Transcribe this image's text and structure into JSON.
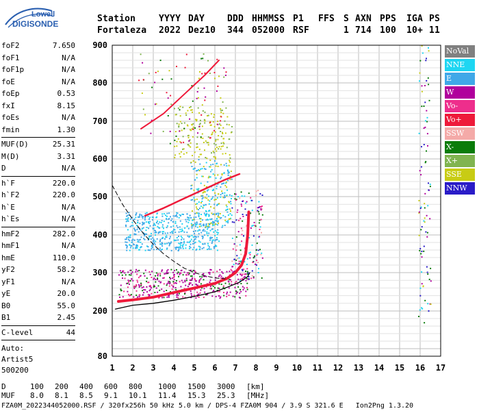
{
  "logo": {
    "brand": "Lowell",
    "product": "DIGISONDE"
  },
  "header": {
    "row1": [
      "Station",
      "YYYY",
      "DAY",
      "DDD",
      "HHMMSS",
      "P1",
      "FFS",
      "S",
      "AXN",
      "PPS",
      "IGA",
      "PS"
    ],
    "row2": [
      "Fortaleza",
      "2022",
      "Dez10",
      "344",
      "052000",
      "RSF",
      "1",
      "714",
      "100",
      "10+",
      "11"
    ]
  },
  "params": {
    "group1": [
      {
        "name": "foF2",
        "value": "7.650"
      },
      {
        "name": "foF1",
        "value": "N/A"
      },
      {
        "name": "foF1p",
        "value": "N/A"
      },
      {
        "name": "foE",
        "value": "N/A"
      },
      {
        "name": "foEp",
        "value": "0.53"
      },
      {
        "name": "fxI",
        "value": "8.15"
      },
      {
        "name": "foEs",
        "value": "N/A"
      },
      {
        "name": "fmin",
        "value": "1.30"
      }
    ],
    "group2": [
      {
        "name": "MUF(D)",
        "value": "25.31"
      },
      {
        "name": "M(D)",
        "value": "3.31"
      },
      {
        "name": "D",
        "value": "N/A"
      }
    ],
    "group3": [
      {
        "name": "h`F",
        "value": "220.0"
      },
      {
        "name": "h`F2",
        "value": "220.0"
      },
      {
        "name": "h`E",
        "value": "N/A"
      },
      {
        "name": "h`Es",
        "value": "N/A"
      }
    ],
    "group4": [
      {
        "name": "hmF2",
        "value": "282.0"
      },
      {
        "name": "hmF1",
        "value": "N/A"
      },
      {
        "name": "hmE",
        "value": "110.0"
      },
      {
        "name": "yF2",
        "value": "58.2"
      },
      {
        "name": "yF1",
        "value": "N/A"
      },
      {
        "name": "yE",
        "value": "20.0"
      },
      {
        "name": "B0",
        "value": "55.0"
      },
      {
        "name": "B1",
        "value": "2.45"
      }
    ],
    "group5": [
      {
        "name": "C-level",
        "value": "44"
      }
    ],
    "extra": [
      "Auto:",
      "Artist5",
      "500200"
    ]
  },
  "legend": [
    {
      "label": "NoVal",
      "color": "#808080"
    },
    {
      "label": "NNE",
      "color": "#1ed6f2"
    },
    {
      "label": "E",
      "color": "#40a8e8"
    },
    {
      "label": "W",
      "color": "#b0009c"
    },
    {
      "label": "Vo-",
      "color": "#ee2e8c"
    },
    {
      "label": "Vo+",
      "color": "#ee1a3a"
    },
    {
      "label": "SSW",
      "color": "#f4aaa8"
    },
    {
      "label": "X-",
      "color": "#0a7c0a"
    },
    {
      "label": "X+",
      "color": "#80b450"
    },
    {
      "label": "SSE",
      "color": "#c8cc14"
    },
    {
      "label": "NNW",
      "color": "#2a1cc8"
    }
  ],
  "chart_data": {
    "type": "scatter",
    "xlim": [
      1,
      17
    ],
    "ylim": [
      80,
      900
    ],
    "x_ticks": [
      "1",
      "2",
      "3",
      "4",
      "5",
      "6",
      "7",
      "8",
      "9",
      "10",
      "11",
      "12",
      "13",
      "14",
      "15",
      "16",
      "17"
    ],
    "y_ticks": [
      "80",
      "200",
      "300",
      "400",
      "500",
      "600",
      "700",
      "800",
      "900"
    ],
    "grid": true,
    "xlabel": "",
    "ylabel": "",
    "series": [
      {
        "name": "Vo+",
        "trace": [
          [
            1.3,
            225
          ],
          [
            2,
            229
          ],
          [
            3,
            236
          ],
          [
            4,
            248
          ],
          [
            5,
            260
          ],
          [
            6,
            272
          ],
          [
            6.6,
            285
          ],
          [
            7,
            300
          ],
          [
            7.3,
            320
          ],
          [
            7.5,
            350
          ],
          [
            7.6,
            400
          ],
          [
            7.65,
            460
          ]
        ]
      },
      {
        "name": "Vo+",
        "trace": [
          [
            2.6,
            450
          ],
          [
            3.5,
            470
          ],
          [
            4.5,
            495
          ],
          [
            5.5,
            520
          ],
          [
            6.5,
            545
          ],
          [
            7.2,
            560
          ]
        ]
      },
      {
        "name": "Vo+",
        "trace": [
          [
            2.4,
            680
          ],
          [
            3.5,
            720
          ],
          [
            4.5,
            770
          ],
          [
            5.5,
            820
          ],
          [
            6.2,
            860
          ]
        ]
      },
      {
        "name": "",
        "trace": [
          [
            1.15,
            205
          ],
          [
            2,
            215
          ],
          [
            3,
            220
          ],
          [
            4,
            228
          ],
          [
            5,
            238
          ],
          [
            6,
            250
          ],
          [
            6.6,
            262
          ],
          [
            7.2,
            275
          ],
          [
            7.6,
            290
          ],
          [
            7.7,
            300
          ]
        ]
      },
      {
        "name": "",
        "trace": [
          [
            1.0,
            530
          ],
          [
            1.5,
            480
          ],
          [
            2,
            440
          ],
          [
            2.5,
            405
          ],
          [
            3,
            375
          ],
          [
            3.5,
            350
          ],
          [
            4,
            330
          ],
          [
            4.5,
            312
          ],
          [
            5,
            300
          ],
          [
            5.5,
            292
          ],
          [
            6,
            286
          ],
          [
            6.5,
            284
          ]
        ]
      }
    ]
  },
  "footer": {
    "d_label": "D",
    "d_values": [
      "100",
      "200",
      "400",
      "600",
      "800",
      "1000",
      "1500",
      "3000",
      "[km]"
    ],
    "muf_label": "MUF",
    "muf_values": [
      "8.0",
      "8.1",
      "8.5",
      "9.1",
      "10.1",
      "11.4",
      "15.3",
      "25.3",
      "[MHz]"
    ],
    "source": "FZA0M_2022344052000.RSF / 320fx256h 50 kHz 5.0 km / DPS-4 FZA0M 904 / 3.9 S 321.6 E   Ion2Png 1.3.20"
  }
}
